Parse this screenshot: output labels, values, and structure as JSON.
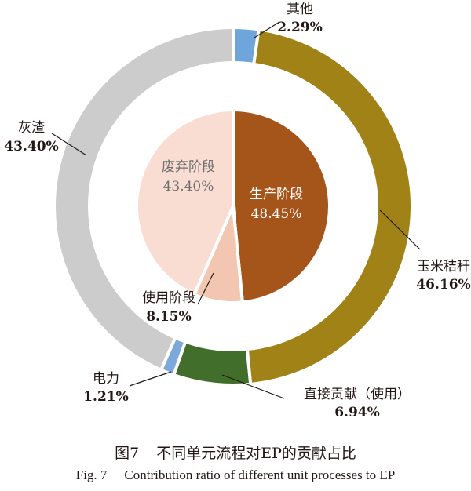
{
  "chart_data": {
    "type": "pie",
    "inner": {
      "slices": [
        {
          "name": "生产阶段",
          "label": "48.45%",
          "value": 48.45,
          "color": "#a5541a",
          "text_color": "#ffffff"
        },
        {
          "name": "使用阶段",
          "label": "8.15%",
          "value": 8.15,
          "color": "#f2c6b0",
          "text_color": "#231815"
        },
        {
          "name": "废弃阶段",
          "label": "43.40%",
          "value": 43.4,
          "color": "#f9ddd3",
          "text_color": "#6d6d6d"
        }
      ]
    },
    "outer": {
      "slices": [
        {
          "name": "其他",
          "label": "2.29%",
          "value": 2.29,
          "color": "#6ea6dc"
        },
        {
          "name": "玉米秸秆",
          "label": "46.16%",
          "value": 46.16,
          "color": "#a08216"
        },
        {
          "name": "直接贡献（使用）",
          "label": "6.94%",
          "value": 6.94,
          "color": "#416e2a"
        },
        {
          "name": "电力",
          "label": "1.21%",
          "value": 1.21,
          "color": "#7ca8da"
        },
        {
          "name": "灰渣",
          "label": "43.40%",
          "value": 43.4,
          "color": "#cccccc"
        }
      ]
    }
  },
  "caption": {
    "cn_number": "图7",
    "cn_text": "不同单元流程对EP的贡献占比",
    "en_number": "Fig. 7",
    "en_text": "Contribution ratio of different unit processes to EP"
  }
}
